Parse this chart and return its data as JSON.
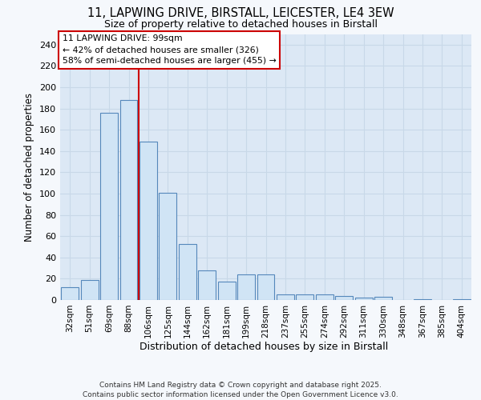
{
  "title_line1": "11, LAPWING DRIVE, BIRSTALL, LEICESTER, LE4 3EW",
  "title_line2": "Size of property relative to detached houses in Birstall",
  "xlabel": "Distribution of detached houses by size in Birstall",
  "ylabel": "Number of detached properties",
  "categories": [
    "32sqm",
    "51sqm",
    "69sqm",
    "88sqm",
    "106sqm",
    "125sqm",
    "144sqm",
    "162sqm",
    "181sqm",
    "199sqm",
    "218sqm",
    "237sqm",
    "255sqm",
    "274sqm",
    "292sqm",
    "311sqm",
    "330sqm",
    "348sqm",
    "367sqm",
    "385sqm",
    "404sqm"
  ],
  "values": [
    12,
    19,
    176,
    188,
    149,
    101,
    53,
    28,
    17,
    24,
    24,
    5,
    5,
    5,
    4,
    2,
    3,
    0,
    1,
    0,
    1
  ],
  "bar_color": "#d0e4f5",
  "bar_edge_color": "#5588bb",
  "grid_color": "#c8d8e8",
  "plot_bg_color": "#dce8f5",
  "fig_bg_color": "#f5f8fc",
  "property_line_x": 4.0,
  "annotation_text": "11 LAPWING DRIVE: 99sqm\n← 42% of detached houses are smaller (326)\n58% of semi-detached houses are larger (455) →",
  "annotation_box_facecolor": "#ffffff",
  "annotation_box_edgecolor": "#cc0000",
  "vline_color": "#cc0000",
  "footer_text": "Contains HM Land Registry data © Crown copyright and database right 2025.\nContains public sector information licensed under the Open Government Licence v3.0.",
  "ylim_max": 250,
  "yticks": [
    0,
    20,
    40,
    60,
    80,
    100,
    120,
    140,
    160,
    180,
    200,
    220,
    240
  ]
}
